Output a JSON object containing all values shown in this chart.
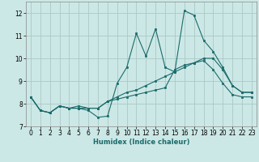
{
  "xlabel": "Humidex (Indice chaleur)",
  "ylabel": "",
  "background_color": "#cce8e6",
  "grid_color": "#aac8c6",
  "line_color": "#1a6b6b",
  "xlim": [
    -0.5,
    23.5
  ],
  "ylim": [
    7,
    12.5
  ],
  "yticks": [
    7,
    8,
    9,
    10,
    11,
    12
  ],
  "xticks": [
    0,
    1,
    2,
    3,
    4,
    5,
    6,
    7,
    8,
    9,
    10,
    11,
    12,
    13,
    14,
    15,
    16,
    17,
    18,
    19,
    20,
    21,
    22,
    23
  ],
  "series": [
    [
      8.3,
      7.7,
      7.6,
      7.9,
      7.8,
      7.8,
      7.7,
      7.4,
      7.45,
      8.9,
      9.6,
      11.1,
      10.1,
      11.3,
      9.6,
      9.4,
      12.1,
      11.9,
      10.8,
      10.3,
      9.6,
      8.8,
      8.5,
      8.5
    ],
    [
      8.3,
      7.7,
      7.6,
      7.9,
      7.8,
      7.9,
      7.8,
      7.8,
      8.1,
      8.2,
      8.3,
      8.4,
      8.5,
      8.6,
      8.7,
      9.5,
      9.7,
      9.8,
      9.9,
      9.5,
      8.9,
      8.4,
      8.3,
      8.3
    ],
    [
      8.3,
      7.7,
      7.6,
      7.9,
      7.8,
      7.8,
      7.8,
      7.8,
      8.1,
      8.3,
      8.5,
      8.6,
      8.8,
      9.0,
      9.2,
      9.4,
      9.6,
      9.8,
      10.0,
      10.0,
      9.5,
      8.8,
      8.5,
      8.5
    ]
  ]
}
